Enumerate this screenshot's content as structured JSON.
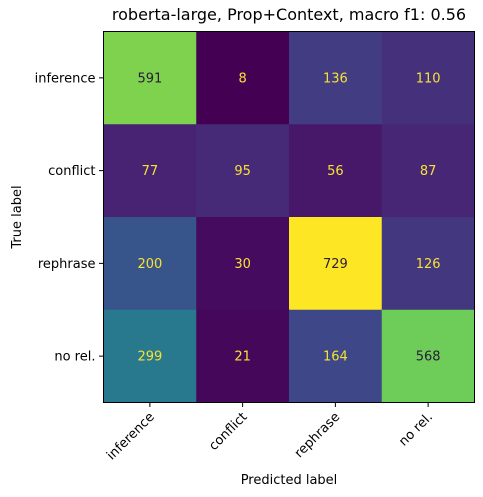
{
  "chart_data": {
    "type": "heatmap",
    "title": "roberta-large, Prop+Context, macro f1: 0.56",
    "xlabel": "Predicted label",
    "ylabel": "True label",
    "row_labels": [
      "inference",
      "conflict",
      "rephrase",
      "no rel."
    ],
    "col_labels": [
      "inference",
      "conflict",
      "rephrase",
      "no rel."
    ],
    "values": [
      [
        591,
        8,
        136,
        110
      ],
      [
        77,
        95,
        56,
        87
      ],
      [
        200,
        30,
        729,
        126
      ],
      [
        299,
        21,
        164,
        568
      ]
    ],
    "colormap": "viridis",
    "value_range": [
      8,
      729
    ],
    "text_color_dark": "#2b1b3a",
    "text_color_light": "#f6e234"
  }
}
